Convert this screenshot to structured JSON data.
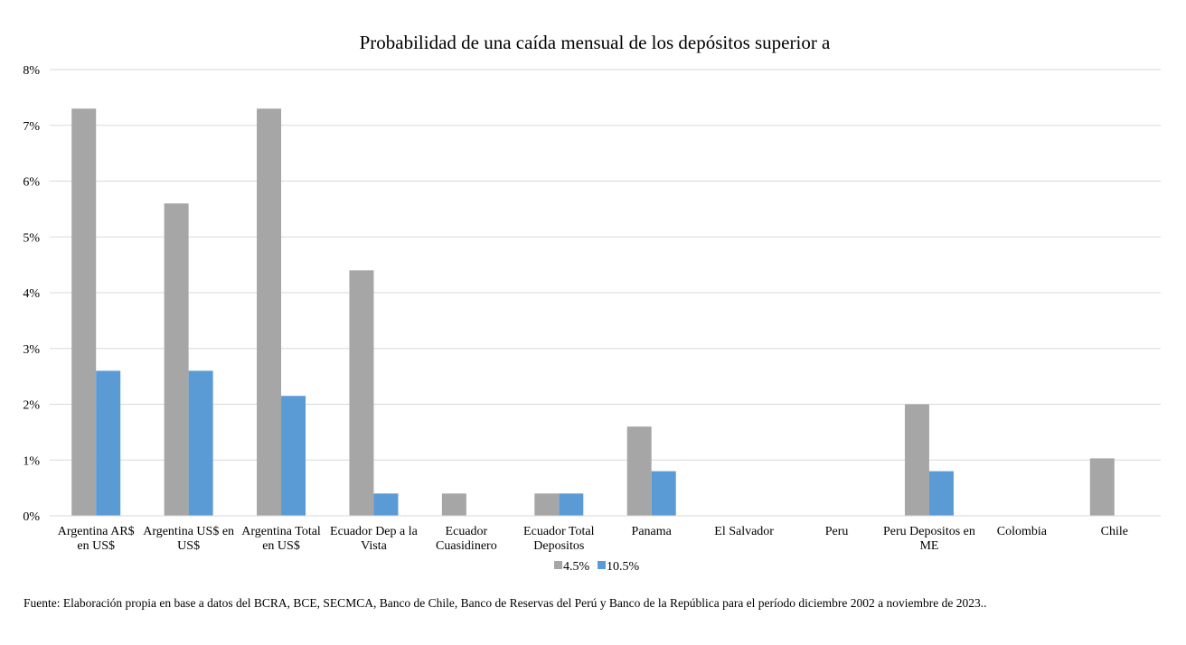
{
  "chart_data": {
    "type": "bar",
    "title": "Probabilidad de una caída mensual de los depósitos superior a",
    "xlabel": "",
    "ylabel": "",
    "ylim": [
      0,
      8
    ],
    "y_ticks": [
      "0%",
      "1%",
      "2%",
      "3%",
      "4%",
      "5%",
      "6%",
      "7%",
      "8%"
    ],
    "grid": true,
    "legend_position": "bottom",
    "categories": [
      [
        "Argentina AR$",
        "en US$"
      ],
      [
        "Argentina US$ en",
        "US$"
      ],
      [
        "Argentina Total",
        "en US$"
      ],
      [
        "Ecuador Dep a la",
        "Vista"
      ],
      [
        "Ecuador",
        "Cuasidinero"
      ],
      [
        "Ecuador Total",
        "Depositos"
      ],
      [
        "Panama"
      ],
      [
        "El Salvador"
      ],
      [
        "Peru"
      ],
      [
        "Peru Depositos en",
        "ME"
      ],
      [
        "Colombia"
      ],
      [
        "Chile"
      ]
    ],
    "series": [
      {
        "name": "4.5%",
        "color": "#a6a6a6",
        "values": [
          7.3,
          5.6,
          7.3,
          4.4,
          0.4,
          0.4,
          1.6,
          0,
          0,
          2.0,
          0,
          1.03
        ]
      },
      {
        "name": "10.5%",
        "color": "#5b9bd5",
        "values": [
          2.6,
          2.6,
          2.15,
          0.4,
          0,
          0.4,
          0.8,
          0,
          0,
          0.8,
          0,
          0
        ]
      }
    ]
  },
  "source_note": "Fuente: Elaboración propia en base a datos del BCRA, BCE, SECMCA, Banco de Chile, Banco de Reservas del Perú y Banco de la República para el período diciembre 2002 a noviembre de 2023.."
}
